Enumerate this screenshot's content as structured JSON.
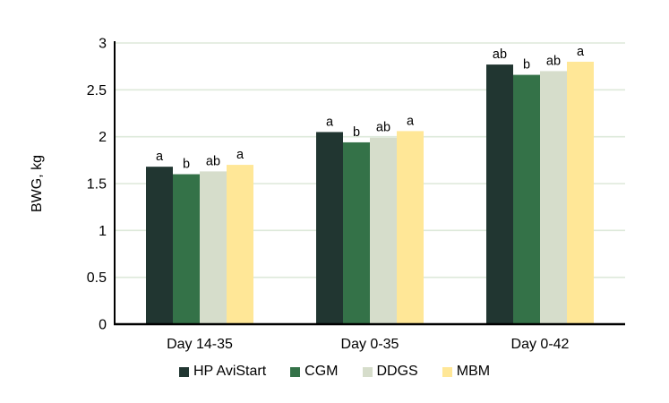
{
  "chart_data": {
    "type": "bar",
    "title": "",
    "xlabel": "",
    "ylabel": "BWG, kg",
    "ylim": [
      0,
      3
    ],
    "ytick_step": 0.5,
    "ytick_labels": [
      "0",
      "0.5",
      "1",
      "1.5",
      "2",
      "2.5",
      "3"
    ],
    "grid": true,
    "legend_position": "bottom-center",
    "categories": [
      "Day 14-35",
      "Day 0-35",
      "Day 0-42"
    ],
    "series": [
      {
        "name": "HP AviStart",
        "color": "#213631",
        "values": [
          1.68,
          2.05,
          2.77
        ],
        "sig_letters": [
          "a",
          "a",
          "ab"
        ]
      },
      {
        "name": "CGM",
        "color": "#347248",
        "values": [
          1.6,
          1.94,
          2.66
        ],
        "sig_letters": [
          "b",
          "b",
          "b"
        ]
      },
      {
        "name": "DDGS",
        "color": "#d6ddcb",
        "values": [
          1.63,
          1.99,
          2.7
        ],
        "sig_letters": [
          "ab",
          "ab",
          "ab"
        ]
      },
      {
        "name": "MBM",
        "color": "#ffe797",
        "values": [
          1.7,
          2.06,
          2.8
        ],
        "sig_letters": [
          "a",
          "a",
          "a"
        ]
      }
    ],
    "colors": {
      "gridline": "#dde9da",
      "axis": "#000000",
      "text": "#000000",
      "background": "#ffffff"
    }
  }
}
